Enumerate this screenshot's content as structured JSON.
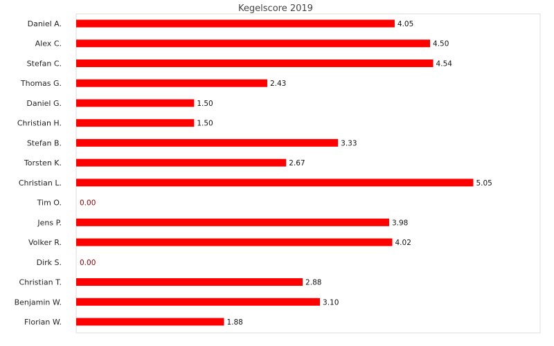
{
  "chart_data": {
    "type": "bar",
    "orientation": "horizontal",
    "title": "Kegelscore 2019",
    "xlabel": "",
    "ylabel": "",
    "xlim": [
      0,
      5.9
    ],
    "grid": false,
    "bar_color": "#ff0000",
    "zero_label_color": "#8b0000",
    "categories": [
      "Daniel A.",
      "Alex C.",
      "Stefan C.",
      "Thomas G.",
      "Daniel G.",
      "Christian H.",
      "Stefan B.",
      "Torsten K.",
      "Christian L.",
      "Tim O.",
      "Jens P.",
      "Volker R.",
      "Dirk S.",
      "Christian T.",
      "Benjamin W.",
      "Florian W."
    ],
    "values": [
      4.05,
      4.5,
      4.54,
      2.43,
      1.5,
      1.5,
      3.33,
      2.67,
      5.05,
      0.0,
      3.98,
      4.02,
      0.0,
      2.88,
      3.1,
      1.88
    ],
    "value_labels": [
      "4.05",
      "4.50",
      "4.54",
      "2.43",
      "1.50",
      "1.50",
      "3.33",
      "2.67",
      "5.05",
      "0.00",
      "3.98",
      "4.02",
      "0.00",
      "2.88",
      "3.10",
      "1.88"
    ]
  }
}
